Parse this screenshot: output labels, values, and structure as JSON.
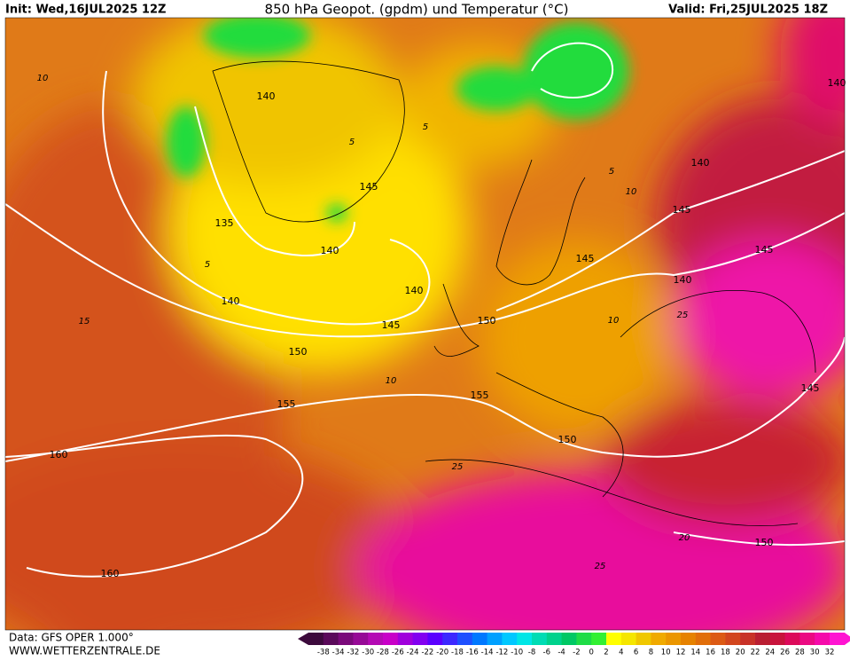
{
  "header": {
    "init": "Init: Wed,16JUL2025 12Z",
    "title": "850 hPa Geopot. (gpdm) und Temperatur (°C)",
    "valid": "Valid: Fri,25JUL2025 18Z"
  },
  "map": {
    "geopotential_labels": [
      140,
      135,
      140,
      140,
      140,
      145,
      145,
      150,
      155,
      160,
      160,
      150,
      155,
      150,
      145,
      145,
      140,
      145,
      140,
      145,
      150,
      140
    ],
    "temperature_labels": [
      10,
      15,
      10,
      5,
      5,
      5,
      10,
      10,
      25,
      25,
      20,
      25,
      5
    ]
  },
  "footer": {
    "data": "Data: GFS OPER 1.000°",
    "site": "WWW.WETTERZENTRALE.DE"
  },
  "colorbar": {
    "labels": [
      -38,
      -34,
      -32,
      -30,
      -28,
      -26,
      -24,
      -22,
      -20,
      -18,
      -16,
      -14,
      -12,
      -10,
      -8,
      -6,
      -4,
      -2,
      0,
      2,
      4,
      6,
      8,
      10,
      12,
      14,
      16,
      18,
      20,
      22,
      24,
      26,
      28,
      30,
      32
    ],
    "colors": [
      "#3c0a3c",
      "#5a0a5a",
      "#7a0a7a",
      "#960a96",
      "#b40ab4",
      "#c800c8",
      "#a000dc",
      "#8200f0",
      "#5a00ff",
      "#3c28ff",
      "#1e50ff",
      "#0078ff",
      "#00a0ff",
      "#00c8ff",
      "#00e6e6",
      "#00dcb4",
      "#00d28c",
      "#00c864",
      "#1edc46",
      "#32f032",
      "#ffff00",
      "#f5e600",
      "#f0c800",
      "#f0aa00",
      "#eb9600",
      "#e68200",
      "#e16e0a",
      "#dc5a14",
      "#d2461e",
      "#c83228",
      "#b91e32",
      "#c8143c",
      "#dc0a5a",
      "#eb0a82",
      "#f50aaa",
      "#ff14d2"
    ]
  }
}
